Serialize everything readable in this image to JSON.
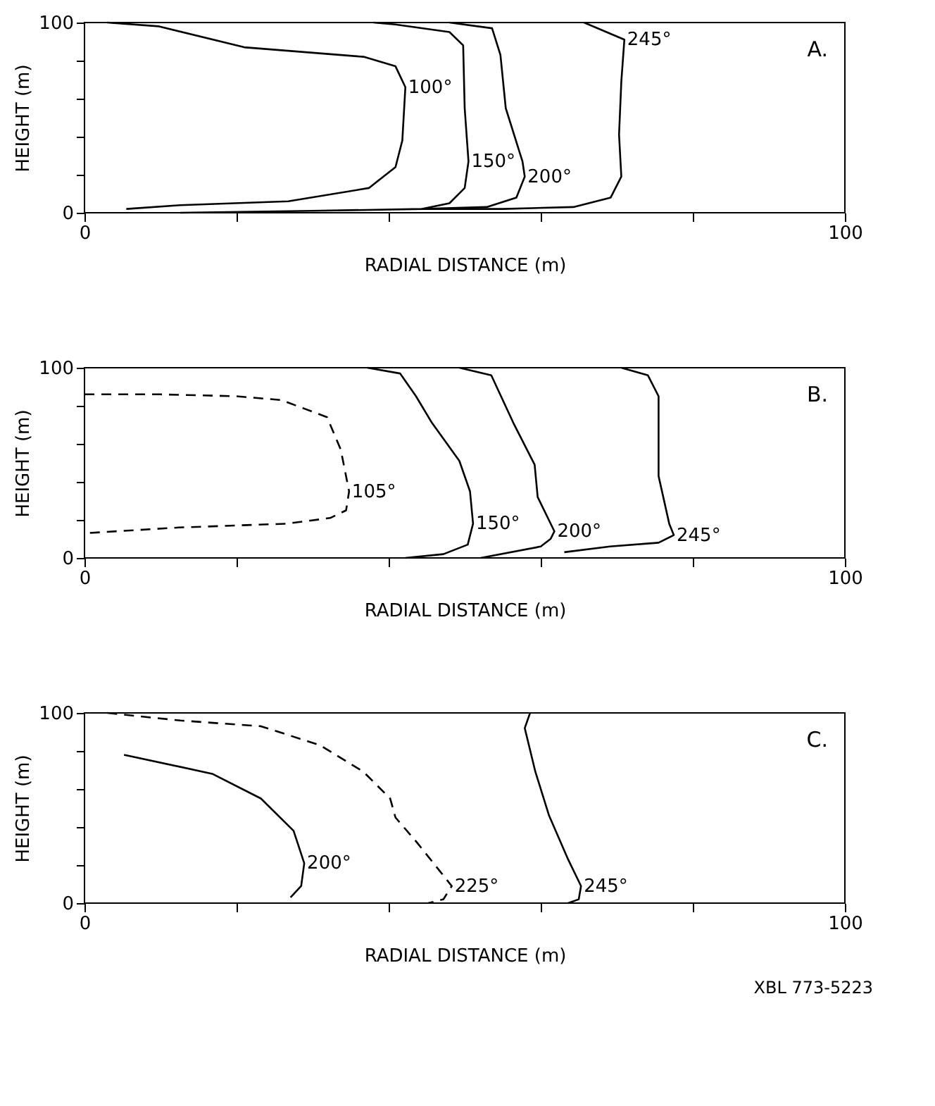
{
  "chart_data": [
    {
      "type": "line",
      "xlabel": "RADIAL DISTANCE (m)",
      "ylabel": "HEIGHT (m)",
      "xlim": [
        0,
        100
      ],
      "ylim": [
        0,
        100
      ],
      "xticks": [
        0,
        {
          "value": 20,
          "label": null
        },
        {
          "value": 40,
          "label": null
        },
        {
          "value": 60,
          "label": null
        },
        {
          "value": 80,
          "label": null
        },
        100
      ],
      "yticks": [
        0,
        {
          "value": 20,
          "label": null
        },
        {
          "value": 40,
          "label": null
        },
        {
          "value": 60,
          "label": null
        },
        {
          "value": 80,
          "label": null
        },
        100
      ],
      "grid": false,
      "legend": false,
      "annotations": [
        "A."
      ],
      "series": [
        {
          "name": "100°",
          "color": "#000000",
          "line_style": "solid",
          "x": [
            3,
            9.8,
            21,
            36.7,
            40.9,
            42.2,
            41.8,
            40.9,
            37.4,
            26.8,
            12.6,
            5.5
          ],
          "values": [
            100,
            98,
            87,
            82,
            77,
            66,
            38,
            24,
            13,
            6,
            4,
            2
          ]
        },
        {
          "name": "150°",
          "color": "#000000",
          "line_style": "solid",
          "x": [
            38,
            40.9,
            48,
            49.8,
            50,
            50.5,
            50,
            48,
            44.4,
            30,
            12.6
          ],
          "values": [
            100,
            99,
            95,
            88,
            55,
            27,
            13,
            5,
            2,
            1,
            0
          ]
        },
        {
          "name": "200°",
          "color": "#000000",
          "line_style": "solid",
          "x": [
            48,
            53.6,
            54.7,
            55.4,
            57.6,
            57.9,
            56.8,
            52.9,
            44.4
          ],
          "values": [
            100,
            97,
            83,
            55,
            27,
            19,
            8,
            3,
            2
          ]
        },
        {
          "name": "245°",
          "color": "#000000",
          "line_style": "solid",
          "x": [
            65.7,
            71,
            70.6,
            70.3,
            70.6,
            69.2,
            64.3,
            55,
            44.4
          ],
          "values": [
            100,
            91,
            69,
            41,
            19,
            8,
            3,
            2,
            2
          ]
        }
      ]
    },
    {
      "type": "line",
      "xlabel": "RADIAL DISTANCE (m)",
      "ylabel": "HEIGHT (m)",
      "xlim": [
        0,
        100
      ],
      "ylim": [
        0,
        100
      ],
      "xticks": [
        0,
        {
          "value": 20,
          "label": null
        },
        {
          "value": 40,
          "label": null
        },
        {
          "value": 60,
          "label": null
        },
        {
          "value": 80,
          "label": null
        },
        100
      ],
      "yticks": [
        0,
        {
          "value": 20,
          "label": null
        },
        {
          "value": 40,
          "label": null
        },
        {
          "value": 60,
          "label": null
        },
        {
          "value": 80,
          "label": null
        },
        100
      ],
      "grid": false,
      "legend": false,
      "annotations": [
        "B."
      ],
      "series": [
        {
          "name": "105°",
          "color": "#000000",
          "line_style": "dashed",
          "x": [
            0,
            10,
            20,
            25.9,
            31.9,
            33.7,
            34.8,
            34.4,
            32.3,
            26.6,
            12.4,
            0
          ],
          "values": [
            86,
            86,
            85,
            83,
            74,
            57,
            35,
            25,
            21,
            18,
            16,
            13
          ]
        },
        {
          "name": "150°",
          "color": "#000000",
          "line_style": "solid",
          "x": [
            37.2,
            41.5,
            43.6,
            45.7,
            49.3,
            50.7,
            51.1,
            50.4,
            47.2,
            42.2
          ],
          "values": [
            100,
            97,
            85,
            71,
            51,
            35,
            18,
            7,
            2,
            0
          ]
        },
        {
          "name": "200°",
          "color": "#000000",
          "line_style": "solid",
          "x": [
            49.3,
            53.5,
            56.4,
            59.2,
            59.6,
            61.8,
            61.3,
            60,
            52.1
          ],
          "values": [
            100,
            96,
            71,
            49,
            32,
            14,
            10,
            6,
            0
          ]
        },
        {
          "name": "245°",
          "color": "#000000",
          "line_style": "solid",
          "x": [
            70.6,
            74.1,
            75.5,
            75.5,
            76.9,
            77.5,
            75.5,
            69.1,
            63.1
          ],
          "values": [
            100,
            96,
            85,
            43,
            18,
            12,
            8,
            6,
            3
          ]
        }
      ]
    },
    {
      "type": "line",
      "xlabel": "RADIAL DISTANCE (m)",
      "ylabel": "HEIGHT (m)",
      "xlim": [
        0,
        100
      ],
      "ylim": [
        0,
        100
      ],
      "xticks": [
        0,
        {
          "value": 20,
          "label": null
        },
        {
          "value": 40,
          "label": null
        },
        {
          "value": 60,
          "label": null
        },
        {
          "value": 80,
          "label": null
        },
        100
      ],
      "yticks": [
        0,
        {
          "value": 20,
          "label": null
        },
        {
          "value": 40,
          "label": null
        },
        {
          "value": 60,
          "label": null
        },
        {
          "value": 80,
          "label": null
        },
        100
      ],
      "grid": false,
      "legend": false,
      "annotations": [
        "C.",
        "XBL 773-5223"
      ],
      "series": [
        {
          "name": "200°",
          "color": "#000000",
          "line_style": "solid",
          "x": [
            5.2,
            16.8,
            23.2,
            27.5,
            28.9,
            28.5,
            27.1
          ],
          "values": [
            78,
            68,
            55,
            38,
            21,
            9,
            3
          ]
        },
        {
          "name": "225°",
          "color": "#000000",
          "line_style": "dashed",
          "x": [
            3,
            12.6,
            23.2,
            31,
            36.7,
            40.2,
            40.9,
            43.7,
            45.9,
            48.3,
            47.2,
            45.2
          ],
          "values": [
            100,
            96,
            93,
            83,
            69,
            55,
            45,
            32,
            21,
            9,
            2,
            0
          ]
        },
        {
          "name": "245°",
          "color": "#000000",
          "line_style": "solid",
          "x": [
            58.6,
            57.9,
            59.3,
            61.1,
            63.6,
            65.3,
            65,
            63.6
          ],
          "values": [
            100,
            92,
            69,
            46,
            23,
            9,
            2,
            0
          ]
        }
      ]
    }
  ]
}
